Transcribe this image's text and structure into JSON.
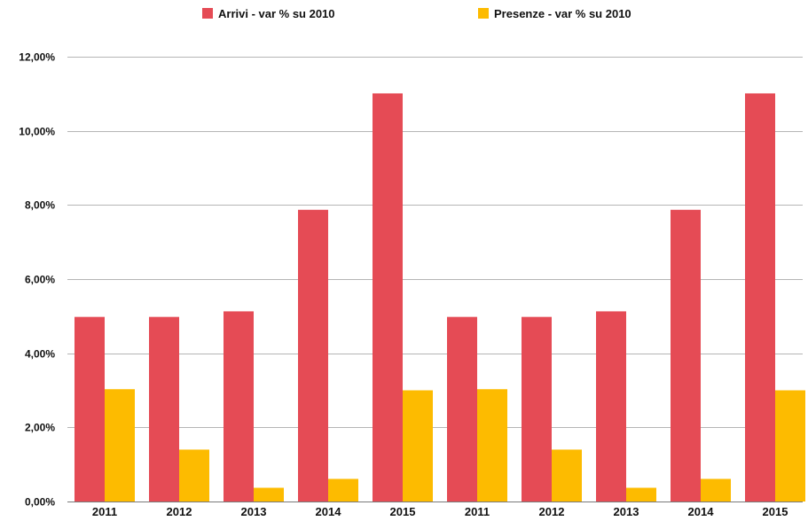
{
  "chart_data": {
    "type": "bar",
    "categories": [
      "2011",
      "2012",
      "2013",
      "2014",
      "2015",
      "2011",
      "2012",
      "2013",
      "2014",
      "2015"
    ],
    "series": [
      {
        "name": "Arrivi - var % su 2010",
        "color": "#e54b55",
        "values": [
          4.98,
          4.98,
          5.13,
          7.87,
          11.01,
          4.98,
          4.98,
          5.13,
          7.87,
          11.01
        ]
      },
      {
        "name": "Presenze - var % su 2010",
        "color": "#fdbb00",
        "values": [
          3.03,
          1.4,
          0.37,
          0.61,
          3.0,
          3.03,
          1.4,
          0.37,
          0.61,
          3.0
        ]
      }
    ],
    "ylim": [
      0,
      12
    ],
    "yticks": [
      0,
      2,
      4,
      6,
      8,
      10,
      12
    ],
    "ytick_labels": [
      "0,00%",
      "2,00%",
      "4,00%",
      "6,00%",
      "8,00%",
      "10,00%",
      "12,00%"
    ],
    "grid": true,
    "legend_position": "top-center"
  }
}
